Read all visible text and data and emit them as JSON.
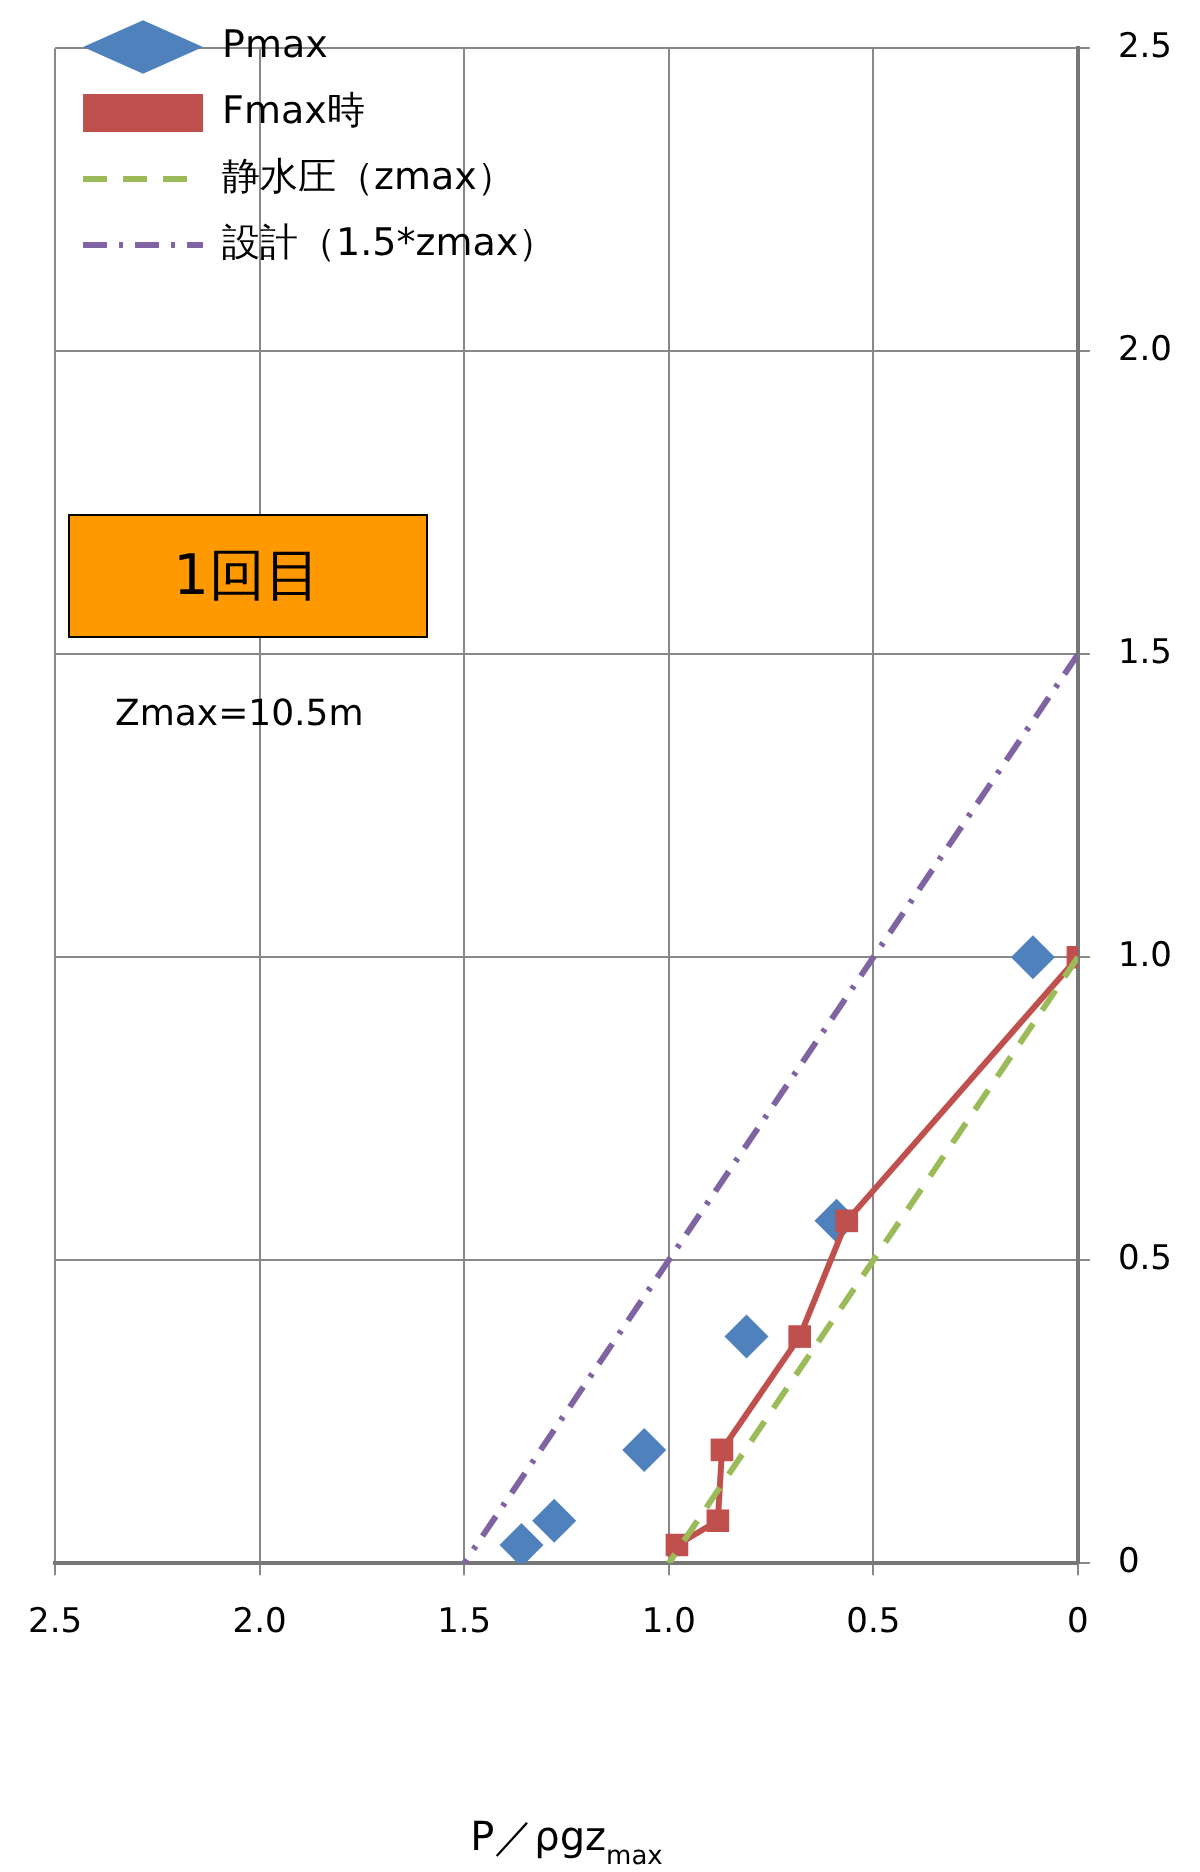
{
  "chart_data": {
    "type": "scatter",
    "xlabel": "P／ρgz$_{max}$",
    "xlim": [
      2.5,
      0
    ],
    "ylim": [
      0,
      2.5
    ],
    "xticks": [
      {
        "value": 2.5,
        "label": "2.5"
      },
      {
        "value": 2.0,
        "label": "2.0"
      },
      {
        "value": 1.5,
        "label": "1.5"
      },
      {
        "value": 1.0,
        "label": "1.0"
      },
      {
        "value": 0.5,
        "label": "0.5"
      },
      0
    ],
    "yticks": [
      0,
      {
        "value": 0.5,
        "label": "0.5"
      },
      {
        "value": 1.0,
        "label": "1.0"
      },
      {
        "value": 1.5,
        "label": "1.5"
      },
      {
        "value": 2.0,
        "label": "2.0"
      },
      {
        "value": 2.5,
        "label": "2.5"
      }
    ],
    "grid": true,
    "legend": "top left",
    "annotations": [
      "1回目",
      "Zmax=10.5m"
    ],
    "series": [
      {
        "name": "Pmax",
        "type": "scatter",
        "color": "#4f81bd",
        "marker": "diamond",
        "x": [
          0.11,
          0.59,
          0.81,
          1.06,
          1.28,
          1.36
        ],
        "values": [
          1.0,
          0.565,
          0.374,
          0.187,
          0.07,
          0.03
        ]
      },
      {
        "name": "Fmax時",
        "type": "line",
        "color": "#c0504d",
        "marker": "square",
        "line_style": "solid",
        "x": [
          0,
          0.565,
          0.68,
          0.87,
          0.88,
          0.98
        ],
        "values": [
          1.0,
          0.565,
          0.374,
          0.187,
          0.07,
          0.03
        ]
      },
      {
        "name": "静水圧（zmax）",
        "type": "line",
        "color": "#9bbb59",
        "marker": "none",
        "line_style": "dashed",
        "x": [
          0,
          1.0
        ],
        "values": [
          1.0,
          0
        ]
      },
      {
        "name": "設計（1.5*zmax）",
        "type": "line",
        "color": "#8064a2",
        "marker": "none",
        "line_style": "dashdot",
        "x": [
          0,
          1.5
        ],
        "values": [
          1.5,
          0
        ]
      }
    ]
  }
}
